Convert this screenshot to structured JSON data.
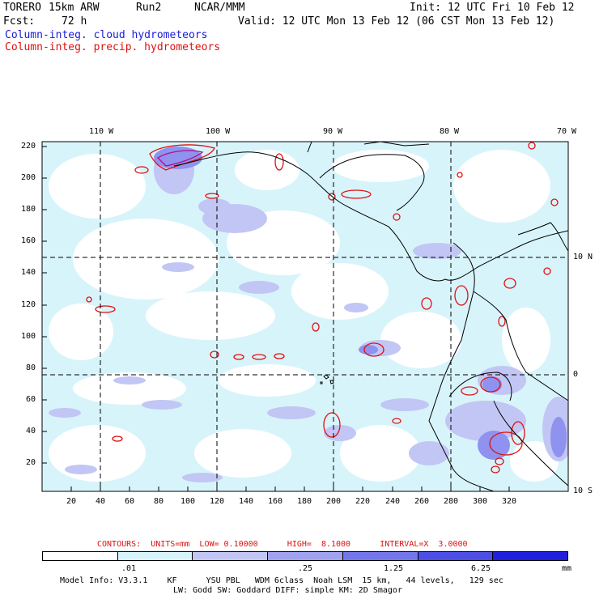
{
  "header": {
    "model": "TORERO",
    "resolution": "15km ARW",
    "run": "Run2",
    "org": "NCAR/MMM",
    "init": "Init: 12 UTC Fri 10 Feb 12",
    "fcst_label": "Fcst:",
    "fcst_value": "72 h",
    "valid": "Valid: 12 UTC Mon 13 Feb 12 (06 CST Mon 13 Feb 12)"
  },
  "fields": {
    "cloud": "Column-integ. cloud hydrometeors",
    "precip": "Column-integ. precip. hydrometeors"
  },
  "map": {
    "lon_labels": [
      "110 W",
      "100 W",
      "90 W",
      "80 W",
      "70 W"
    ],
    "lat_labels": [
      "10 N",
      "0",
      "10 S"
    ],
    "y_ticks": [
      "220",
      "200",
      "180",
      "160",
      "140",
      "120",
      "100",
      "80",
      "60",
      "40",
      "20"
    ],
    "x_ticks": [
      "20",
      "40",
      "60",
      "80",
      "100",
      "120",
      "140",
      "160",
      "180",
      "200",
      "220",
      "240",
      "260",
      "280",
      "300",
      "320"
    ]
  },
  "contours": "CONTOURS:  UNITS=mm  LOW= 0.10000      HIGH=  8.1000      INTERVAL=X  3.0000",
  "legend": {
    "labels": [
      ".01",
      ".25",
      "1.25",
      "6.25"
    ],
    "unit": "mm",
    "colors": [
      "#ffffff",
      "#d8f4fb",
      "#c2c6f4",
      "#a0a2f0",
      "#7476ec",
      "#4c4ee6",
      "#2020dc"
    ]
  },
  "info": {
    "line1": "Model Info: V3.3.1    KF      YSU PBL   WDM 6class  Noah LSM  15 km,   44 levels,   129 sec",
    "line2": "LW: Godd SW: Goddard DIFF: simple KM: 2D Smagor"
  }
}
